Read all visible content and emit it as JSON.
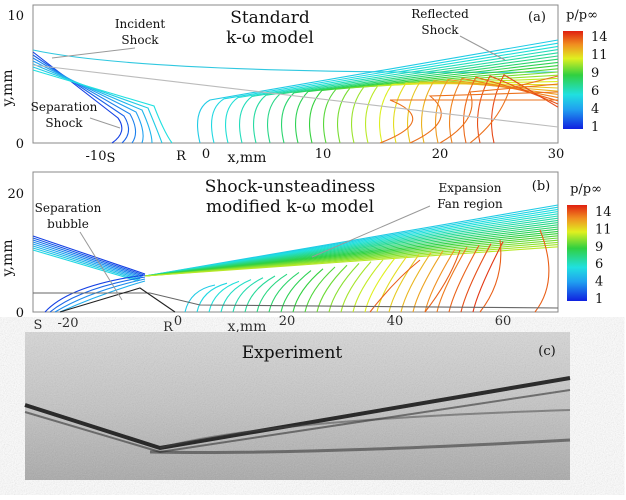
{
  "chart_data": [
    {
      "type": "heatmap",
      "panel": "(a)",
      "title": [
        "Standard",
        "k-ω model"
      ],
      "xlabel": "x,mm",
      "ylabel": "y,mm",
      "xlim": [
        -14.6,
        30
      ],
      "ylim": [
        0,
        10.7
      ],
      "xticks": [
        "-10",
        "0",
        "10",
        "20",
        "30"
      ],
      "xtick_values": [
        -10,
        0,
        10,
        20,
        30
      ],
      "yticks": [
        "0",
        "10"
      ],
      "ytick_values": [
        0,
        10
      ],
      "markers": [
        {
          "label": "S",
          "x": -8.9
        },
        {
          "label": "R",
          "x": -2.2
        }
      ],
      "annotations": [
        [
          "Incident",
          "Shock"
        ],
        [
          "Separation",
          "Shock"
        ],
        [
          "Reflected",
          "Shock"
        ]
      ],
      "colorbar": {
        "label": "p/p∞",
        "ticks": [
          "14",
          "11",
          "9",
          "6",
          "4",
          "1"
        ],
        "range": [
          1,
          14
        ]
      }
    },
    {
      "type": "heatmap",
      "panel": "(b)",
      "title": [
        "Shock-unsteadiness",
        "modified k-ω model"
      ],
      "xlabel": "x,mm",
      "ylabel": "y,mm",
      "xlim": [
        -26,
        70
      ],
      "ylim": [
        0,
        23
      ],
      "xticks": [
        "-20",
        "0",
        "20",
        "40",
        "60"
      ],
      "xtick_values": [
        -20,
        0,
        20,
        40,
        60
      ],
      "yticks": [
        "0",
        "20"
      ],
      "ytick_values": [
        0,
        20
      ],
      "markers": [
        {
          "label": "S",
          "x": -25
        },
        {
          "label": "R",
          "x": -2
        }
      ],
      "annotations": [
        [
          "Separation",
          "bubble"
        ],
        [
          "Expansion",
          "Fan region"
        ]
      ],
      "colorbar": {
        "label": "p/p∞",
        "ticks": [
          "14",
          "11",
          "9",
          "6",
          "4",
          "1"
        ],
        "range": [
          1,
          14
        ]
      }
    },
    {
      "type": "image",
      "panel": "(c)",
      "title": "Experiment"
    }
  ]
}
